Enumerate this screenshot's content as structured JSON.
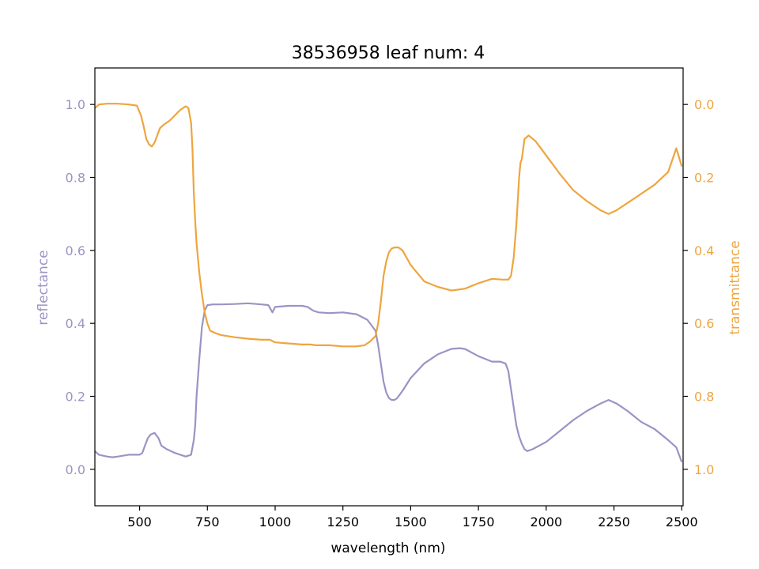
{
  "chart_data": {
    "type": "line",
    "title": "38536958 leaf num: 4",
    "xlabel": "wavelength (nm)",
    "ylabel_left": "reflectance",
    "ylabel_right": "transmittance",
    "xlim": [
      335,
      2505
    ],
    "ylim_left": [
      -0.1,
      1.1
    ],
    "ylim_right": [
      1.1,
      -0.1
    ],
    "xticks": [
      500,
      750,
      1000,
      1250,
      1500,
      1750,
      2000,
      2250,
      2500
    ],
    "xtick_labels": [
      "500",
      "750",
      "1000",
      "1250",
      "1500",
      "1750",
      "2000",
      "2250",
      "2500"
    ],
    "yticks_left": [
      0.0,
      0.2,
      0.4,
      0.6,
      0.8,
      1.0
    ],
    "ytick_labels_left": [
      "0.0",
      "0.2",
      "0.4",
      "0.6",
      "0.8",
      "1.0"
    ],
    "yticks_right": [
      0.0,
      0.2,
      0.4,
      0.6,
      0.8,
      1.0
    ],
    "ytick_labels_right": [
      "0.0",
      "0.2",
      "0.4",
      "0.6",
      "0.8",
      "1.0"
    ],
    "grid": false,
    "colors": {
      "reflectance": "#9a94c4",
      "transmittance": "#eea53f",
      "axes": "#000000"
    },
    "series": [
      {
        "axis": "left",
        "color": "#9a94c4",
        "x": [
          335,
          350,
          380,
          400,
          420,
          460,
          500,
          510,
          520,
          530,
          540,
          555,
          570,
          580,
          600,
          630,
          650,
          670,
          690,
          700,
          705,
          710,
          720,
          730,
          740,
          750,
          770,
          800,
          850,
          900,
          950,
          975,
          990,
          1000,
          1050,
          1100,
          1120,
          1140,
          1160,
          1200,
          1250,
          1300,
          1340,
          1370,
          1380,
          1390,
          1400,
          1410,
          1420,
          1430,
          1440,
          1450,
          1470,
          1500,
          1550,
          1600,
          1650,
          1680,
          1700,
          1750,
          1800,
          1830,
          1850,
          1860,
          1870,
          1880,
          1890,
          1900,
          1910,
          1920,
          1930,
          1950,
          2000,
          2050,
          2100,
          2150,
          2200,
          2230,
          2260,
          2300,
          2350,
          2400,
          2450,
          2480,
          2500
        ],
        "y": [
          0.05,
          0.04,
          0.035,
          0.033,
          0.035,
          0.04,
          0.04,
          0.045,
          0.065,
          0.085,
          0.095,
          0.1,
          0.085,
          0.065,
          0.055,
          0.045,
          0.04,
          0.035,
          0.04,
          0.08,
          0.12,
          0.2,
          0.3,
          0.39,
          0.435,
          0.45,
          0.452,
          0.452,
          0.453,
          0.455,
          0.452,
          0.45,
          0.43,
          0.445,
          0.448,
          0.448,
          0.445,
          0.435,
          0.43,
          0.428,
          0.43,
          0.425,
          0.41,
          0.38,
          0.34,
          0.29,
          0.24,
          0.21,
          0.195,
          0.19,
          0.19,
          0.195,
          0.215,
          0.25,
          0.29,
          0.315,
          0.33,
          0.332,
          0.33,
          0.31,
          0.295,
          0.295,
          0.29,
          0.27,
          0.22,
          0.17,
          0.12,
          0.09,
          0.07,
          0.055,
          0.05,
          0.055,
          0.075,
          0.105,
          0.135,
          0.16,
          0.18,
          0.19,
          0.18,
          0.16,
          0.13,
          0.11,
          0.08,
          0.06,
          0.02
        ]
      },
      {
        "axis": "right",
        "color": "#eea53f",
        "x": [
          335,
          350,
          380,
          420,
          460,
          490,
          505,
          515,
          525,
          535,
          545,
          555,
          565,
          575,
          590,
          610,
          630,
          650,
          670,
          680,
          690,
          695,
          700,
          705,
          710,
          720,
          730,
          740,
          750,
          760,
          780,
          800,
          850,
          900,
          950,
          980,
          1000,
          1050,
          1100,
          1130,
          1150,
          1180,
          1200,
          1250,
          1300,
          1330,
          1350,
          1370,
          1380,
          1390,
          1400,
          1410,
          1420,
          1430,
          1440,
          1455,
          1470,
          1500,
          1550,
          1600,
          1650,
          1700,
          1750,
          1800,
          1840,
          1860,
          1870,
          1880,
          1890,
          1900,
          1905,
          1910,
          1920,
          1935,
          1960,
          2000,
          2050,
          2100,
          2150,
          2200,
          2230,
          2260,
          2300,
          2350,
          2400,
          2450,
          2480,
          2500
        ],
        "y": [
          0.01,
          0.0,
          -0.002,
          -0.002,
          0.0,
          0.003,
          0.03,
          0.06,
          0.095,
          0.11,
          0.115,
          0.105,
          0.085,
          0.065,
          0.055,
          0.045,
          0.03,
          0.015,
          0.005,
          0.01,
          0.05,
          0.12,
          0.24,
          0.32,
          0.38,
          0.46,
          0.52,
          0.57,
          0.6,
          0.62,
          0.627,
          0.632,
          0.638,
          0.642,
          0.645,
          0.645,
          0.652,
          0.655,
          0.658,
          0.658,
          0.66,
          0.66,
          0.66,
          0.663,
          0.663,
          0.66,
          0.65,
          0.635,
          0.6,
          0.54,
          0.47,
          0.43,
          0.405,
          0.395,
          0.392,
          0.392,
          0.4,
          0.44,
          0.485,
          0.5,
          0.51,
          0.505,
          0.49,
          0.478,
          0.48,
          0.48,
          0.47,
          0.42,
          0.33,
          0.2,
          0.16,
          0.15,
          0.095,
          0.085,
          0.1,
          0.14,
          0.19,
          0.235,
          0.265,
          0.29,
          0.3,
          0.29,
          0.27,
          0.245,
          0.22,
          0.185,
          0.12,
          0.17
        ]
      }
    ]
  }
}
